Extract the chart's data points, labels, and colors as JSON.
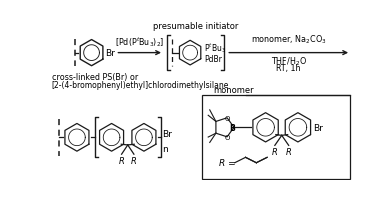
{
  "bg_color": "#ffffff",
  "line_color": "#1a1a1a",
  "text_color": "#000000",
  "fig_width": 3.92,
  "fig_height": 2.03,
  "dpi": 100,
  "reagent1_label": "[Pd(P$^t$Bu$_3$)$_2$]",
  "presumable_initiator": "presumable initiator",
  "monomer_label": "monomer, Na$_2$CO$_3$",
  "conditions_line2": "THF/H$_2$O",
  "conditions_line3": "RT, 1h",
  "crosslinked_line1": "cross-linked PS(Br) or",
  "crosslinked_line2": "[2-(4-bromophenyl)ethyl]chlorodimethylsilane",
  "R_label": "R",
  "R_eq": "R =",
  "n_label": "n",
  "Br_label": "Br",
  "monomer_box_label": "monomer",
  "ptbu3_label": "P$^t$Bu$_3$",
  "pdbr_label": "PdBr"
}
